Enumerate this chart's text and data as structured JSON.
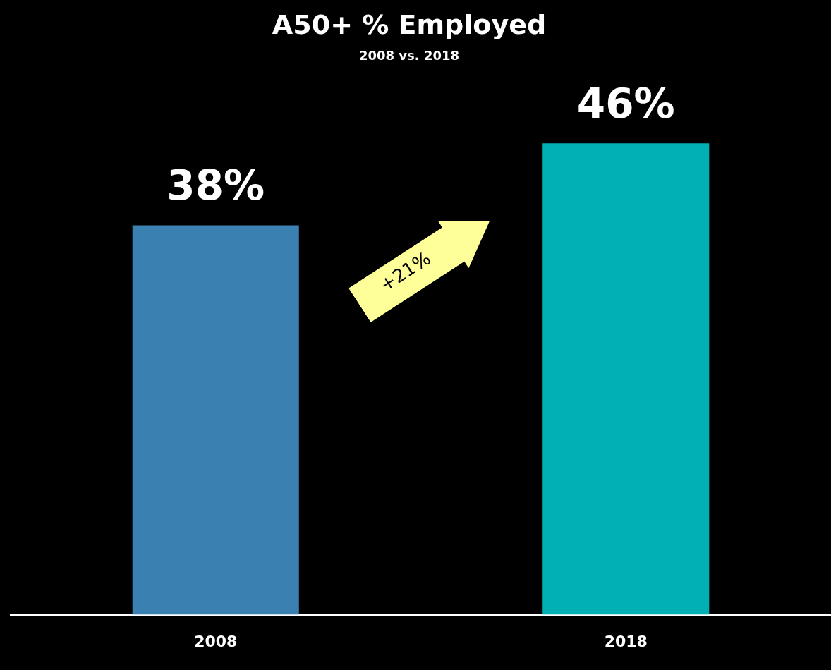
{
  "chart_data": {
    "type": "bar",
    "title": "A50+ % Employed",
    "subtitle": "2008 vs. 2018",
    "categories": [
      "2008",
      "2018"
    ],
    "values": [
      38,
      46
    ],
    "colors": [
      "#3a80b0",
      "#00b0b5"
    ],
    "value_labels": [
      "38%",
      "46%"
    ],
    "legend": false,
    "annotations": [
      "+21%"
    ]
  }
}
